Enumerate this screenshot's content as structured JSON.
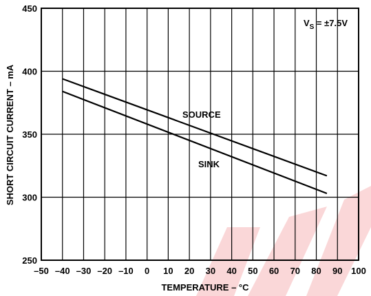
{
  "chart_data": {
    "type": "line",
    "xlabel": "TEMPERATURE – °C",
    "ylabel": "SHORT CIRCUIT CURRENT – mA",
    "xlim": [
      -50,
      100
    ],
    "ylim": [
      250,
      450
    ],
    "x_ticks": [
      -50,
      -40,
      -30,
      -20,
      -10,
      0,
      10,
      20,
      30,
      40,
      50,
      60,
      70,
      80,
      90,
      100
    ],
    "x_tick_labels": [
      "–50",
      "–40",
      "–30",
      "–20",
      "–10",
      "0",
      "10",
      "20",
      "30",
      "40",
      "50",
      "60",
      "70",
      "80",
      "90",
      "100"
    ],
    "y_ticks": [
      250,
      300,
      350,
      400,
      450
    ],
    "y_tick_labels": [
      "250",
      "300",
      "350",
      "400",
      "450"
    ],
    "grid": true,
    "annotation": {
      "main": "V",
      "sub": "S",
      "rest": " = ±7.5V"
    },
    "series": [
      {
        "name": "SOURCE",
        "x": [
          -40,
          85
        ],
        "y": [
          394,
          317
        ]
      },
      {
        "name": "SINK",
        "x": [
          -40,
          85
        ],
        "y": [
          384,
          303
        ]
      }
    ],
    "watermark_color": "#e8262b"
  }
}
